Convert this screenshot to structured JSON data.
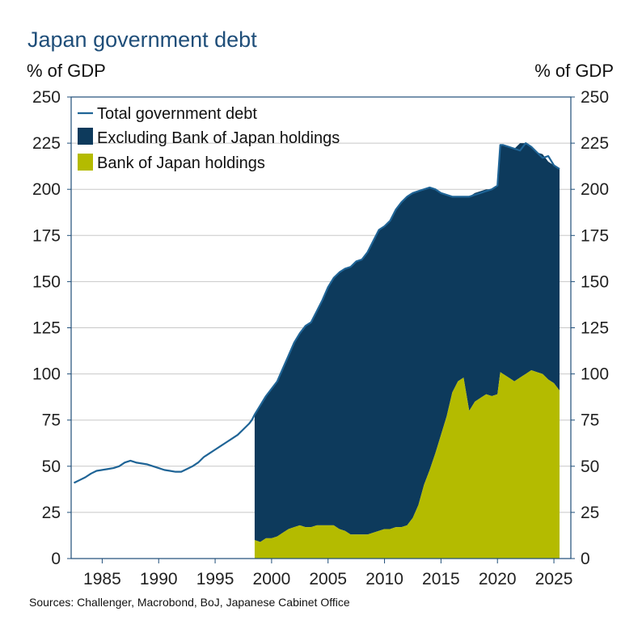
{
  "title": "Japan government debt",
  "unit_left": "% of GDP",
  "unit_right": "% of GDP",
  "source": "Sources: Challenger, Macrobond, BoJ, Japanese Cabinet Office",
  "colors": {
    "total_line": "#1f6496",
    "excluding_boj": "#0d3a5c",
    "boj": "#b4bb00",
    "grid": "#c8c8c8",
    "axis": "#1f4e79"
  },
  "chart_data": {
    "type": "area",
    "title": "Japan government debt",
    "ylabel": "% of GDP",
    "xlim": [
      1982.25,
      2026.5
    ],
    "ylim": [
      0,
      250
    ],
    "x_ticks": [
      1985,
      1990,
      1995,
      2000,
      2005,
      2010,
      2015,
      2020,
      2025
    ],
    "y_ticks": [
      0,
      25,
      50,
      75,
      100,
      125,
      150,
      175,
      200,
      225,
      250
    ],
    "grid": true,
    "legend_position": "top-left",
    "legend": [
      "Total government debt",
      "Excluding Bank of Japan holdings",
      "Bank of Japan holdings"
    ],
    "series": [
      {
        "name": "Total government debt",
        "x": [
          1982.5,
          1983,
          1983.5,
          1984,
          1984.5,
          1985,
          1985.5,
          1986,
          1986.5,
          1987,
          1987.5,
          1988,
          1988.5,
          1989,
          1989.5,
          1990,
          1990.5,
          1991,
          1991.5,
          1992,
          1992.5,
          1993,
          1993.5,
          1994,
          1994.5,
          1995,
          1995.5,
          1996,
          1996.5,
          1997,
          1997.5,
          1998,
          1998.25,
          1998.5,
          1999,
          1999.5,
          2000,
          2000.5,
          2001,
          2001.5,
          2002,
          2002.5,
          2003,
          2003.5,
          2004,
          2004.5,
          2005,
          2005.5,
          2006,
          2006.5,
          2007,
          2007.5,
          2008,
          2008.5,
          2009,
          2009.5,
          2010,
          2010.5,
          2011,
          2011.5,
          2012,
          2012.5,
          2013,
          2013.5,
          2014,
          2014.5,
          2015,
          2015.5,
          2016,
          2016.5,
          2017,
          2017.5,
          2018,
          2018.5,
          2019,
          2019.5,
          2020,
          2020.25,
          2020.5,
          2021,
          2021.5,
          2022,
          2022.5,
          2023,
          2023.5,
          2024,
          2024.5,
          2025,
          2025.5
        ],
        "values": [
          41,
          42.5,
          44,
          46,
          47.5,
          48,
          48.5,
          49,
          50,
          52,
          53,
          52,
          51.5,
          51,
          50,
          49,
          48,
          47.5,
          47,
          47,
          48.5,
          50,
          52,
          55,
          57,
          59,
          61,
          63,
          65,
          67,
          70,
          73,
          75,
          78,
          83,
          88,
          92,
          96,
          103,
          110,
          117,
          122,
          126,
          128,
          134,
          140,
          147,
          152,
          155,
          157,
          158,
          161,
          162,
          166,
          172,
          178,
          180,
          183,
          189,
          193,
          196,
          198,
          199,
          200,
          201,
          200,
          198,
          197,
          196,
          196,
          196,
          196,
          197,
          198,
          199,
          200,
          202,
          224,
          224,
          223,
          222,
          221,
          225,
          223,
          220,
          217,
          218,
          213,
          211
        ]
      },
      {
        "name": "Excluding Bank of Japan holdings",
        "x": [
          1998.5,
          1999,
          1999.5,
          2000,
          2000.5,
          2001,
          2001.5,
          2002,
          2002.5,
          2003,
          2003.5,
          2004,
          2004.5,
          2005,
          2005.5,
          2006,
          2006.5,
          2007,
          2007.5,
          2008,
          2008.5,
          2009,
          2009.5,
          2010,
          2010.5,
          2011,
          2011.5,
          2012,
          2012.5,
          2013,
          2013.5,
          2014,
          2014.5,
          2015,
          2015.5,
          2016,
          2016.5,
          2017,
          2017.5,
          2018,
          2018.5,
          2019,
          2019.5,
          2020,
          2020.25,
          2020.5,
          2021,
          2021.5,
          2022,
          2022.5,
          2023,
          2023.5,
          2024,
          2024.5,
          2025,
          2025.5
        ],
        "values": [
          68,
          74,
          77,
          81,
          84,
          89,
          94,
          100,
          104,
          109,
          111,
          116,
          122,
          129,
          134,
          139,
          142,
          145,
          148,
          149,
          153,
          158,
          163,
          164,
          167,
          172,
          176,
          178,
          176,
          170,
          160,
          153,
          143,
          131,
          120,
          106,
          100,
          98,
          116,
          113,
          112,
          111,
          112,
          113,
          123,
          124,
          125,
          126,
          127,
          125,
          121,
          119,
          119,
          118,
          118,
          120
        ]
      },
      {
        "name": "Bank of Japan holdings",
        "x": [
          1998.5,
          1999,
          1999.5,
          2000,
          2000.5,
          2001,
          2001.5,
          2002,
          2002.5,
          2003,
          2003.5,
          2004,
          2004.5,
          2005,
          2005.5,
          2006,
          2006.5,
          2007,
          2007.5,
          2008,
          2008.5,
          2009,
          2009.5,
          2010,
          2010.5,
          2011,
          2011.5,
          2012,
          2012.5,
          2013,
          2013.5,
          2014,
          2014.5,
          2015,
          2015.5,
          2016,
          2016.5,
          2017,
          2017.5,
          2018,
          2018.5,
          2019,
          2019.5,
          2020,
          2020.25,
          2020.5,
          2021,
          2021.5,
          2022,
          2022.5,
          2023,
          2023.5,
          2024,
          2024.5,
          2025,
          2025.5
        ],
        "values": [
          10,
          9,
          11,
          11,
          12,
          14,
          16,
          17,
          18,
          17,
          17,
          18,
          18,
          18,
          18,
          16,
          15,
          13,
          13,
          13,
          13,
          14,
          15,
          16,
          16,
          17,
          17,
          18,
          22,
          29,
          40,
          48,
          57,
          67,
          77,
          90,
          96,
          98,
          80,
          85,
          87,
          89,
          88,
          89,
          101,
          100,
          98,
          96,
          98,
          100,
          102,
          101,
          100,
          97,
          95,
          91
        ]
      }
    ]
  }
}
